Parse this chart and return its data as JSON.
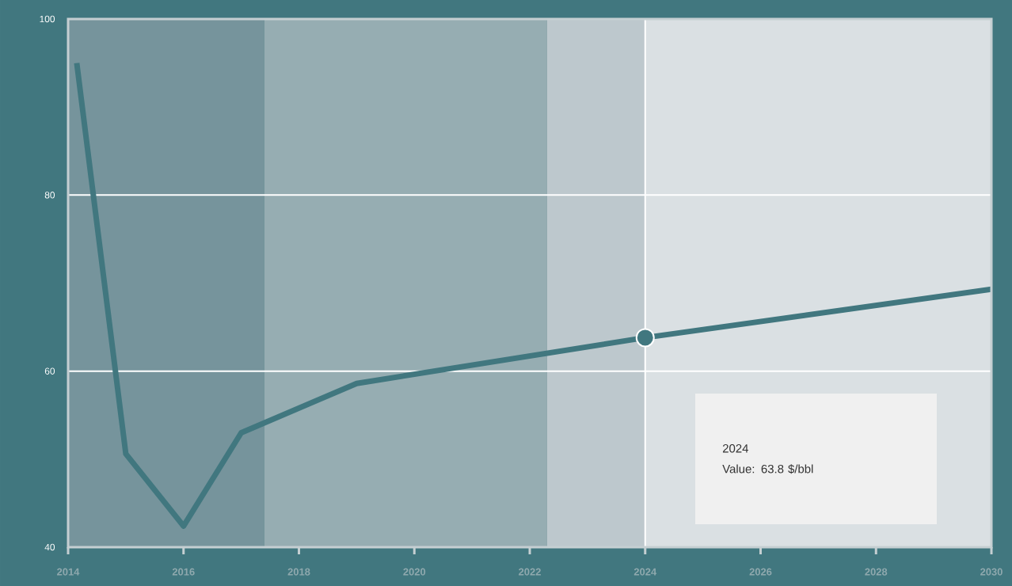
{
  "chart_data": {
    "type": "line",
    "x": [
      2014.15,
      2015,
      2016,
      2017,
      2019,
      2024,
      2030
    ],
    "values": [
      95,
      50.6,
      42.4,
      53,
      58.6,
      63.8,
      69.3
    ],
    "color": "#41777f",
    "xlim": [
      2014,
      2030
    ],
    "xticks": [
      2014,
      2016,
      2018,
      2020,
      2022,
      2024,
      2026,
      2028,
      2030
    ],
    "ylim": [
      40,
      100
    ],
    "yticks": [
      40,
      60,
      80,
      100
    ],
    "grid": "y",
    "bands": [
      {
        "axis": "x",
        "from": 2014,
        "to": 2017.4,
        "color": "#76949c"
      },
      {
        "axis": "x",
        "from": 2017.4,
        "to": 2022.3,
        "color": "#96adb2"
      },
      {
        "axis": "x",
        "from": 2022.3,
        "to": 2024,
        "color": "#bdc8cd"
      },
      {
        "axis": "x",
        "from": 2024,
        "to": 2030,
        "color": "#dae0e3"
      }
    ],
    "ref_lines": [
      {
        "axis": "x",
        "value": 2024,
        "color": "#ffffff"
      }
    ],
    "series": [
      {
        "type": "scatter",
        "x": [
          2024
        ],
        "values": [
          63.8
        ],
        "color": "#41777f",
        "marker": "circle"
      }
    ],
    "annotations": [
      "2024",
      "Value: 63.8 $/bbl"
    ]
  }
}
